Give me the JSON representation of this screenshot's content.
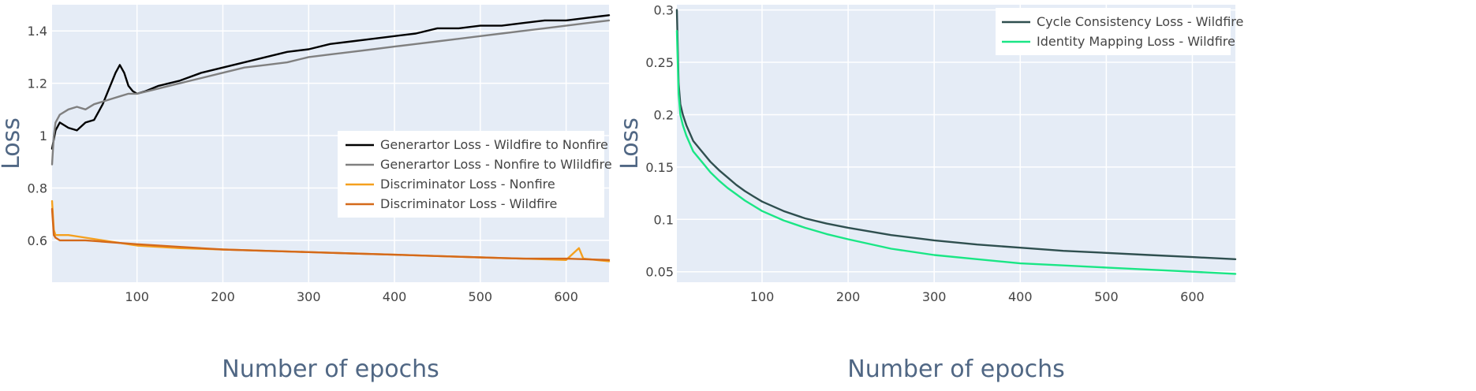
{
  "chart_data": [
    {
      "type": "line",
      "title": "",
      "xlabel": "Number of epochs",
      "ylabel": "Loss",
      "xlim": [
        1,
        650
      ],
      "ylim": [
        0.44,
        1.5
      ],
      "xticks": [
        100,
        200,
        300,
        400,
        500,
        600
      ],
      "yticks": [
        0.6,
        0.8,
        1,
        1.2,
        1.4
      ],
      "ytick_labels": [
        "0.6",
        "0.8",
        "1",
        "1.2",
        "1.4"
      ],
      "grid": true,
      "legend_position": "center-right",
      "series": [
        {
          "name": "Generartor Loss - Wildfire to Nonfire",
          "color": "#000000",
          "x": [
            1,
            5,
            10,
            20,
            30,
            40,
            50,
            60,
            65,
            70,
            75,
            80,
            85,
            90,
            95,
            100,
            110,
            125,
            150,
            175,
            200,
            225,
            250,
            275,
            300,
            325,
            350,
            375,
            400,
            425,
            450,
            475,
            500,
            525,
            550,
            575,
            600,
            625,
            650
          ],
          "y": [
            0.95,
            1.02,
            1.05,
            1.03,
            1.02,
            1.05,
            1.06,
            1.12,
            1.16,
            1.2,
            1.24,
            1.27,
            1.24,
            1.19,
            1.17,
            1.16,
            1.17,
            1.19,
            1.21,
            1.24,
            1.26,
            1.28,
            1.3,
            1.32,
            1.33,
            1.35,
            1.36,
            1.37,
            1.38,
            1.39,
            1.41,
            1.41,
            1.42,
            1.42,
            1.43,
            1.44,
            1.44,
            1.45,
            1.46
          ]
        },
        {
          "name": "Generartor Loss - Nonfire to Wlildfire",
          "color": "#808080",
          "x": [
            1,
            3,
            5,
            10,
            20,
            30,
            40,
            50,
            60,
            70,
            80,
            90,
            100,
            125,
            150,
            175,
            200,
            225,
            250,
            275,
            300,
            325,
            350,
            375,
            400,
            425,
            450,
            475,
            500,
            525,
            550,
            575,
            600,
            625,
            650
          ],
          "y": [
            0.89,
            1.0,
            1.05,
            1.08,
            1.1,
            1.11,
            1.1,
            1.12,
            1.13,
            1.14,
            1.15,
            1.16,
            1.16,
            1.18,
            1.2,
            1.22,
            1.24,
            1.26,
            1.27,
            1.28,
            1.3,
            1.31,
            1.32,
            1.33,
            1.34,
            1.35,
            1.36,
            1.37,
            1.38,
            1.39,
            1.4,
            1.41,
            1.42,
            1.43,
            1.44
          ]
        },
        {
          "name": "Discriminator Loss - Nonfire",
          "color": "#F5A01E",
          "x": [
            1,
            3,
            5,
            10,
            20,
            40,
            60,
            80,
            100,
            150,
            200,
            250,
            300,
            350,
            400,
            450,
            500,
            550,
            600,
            615,
            620,
            650
          ],
          "y": [
            0.75,
            0.64,
            0.62,
            0.62,
            0.62,
            0.61,
            0.6,
            0.59,
            0.58,
            0.57,
            0.565,
            0.56,
            0.555,
            0.55,
            0.545,
            0.54,
            0.535,
            0.53,
            0.525,
            0.57,
            0.53,
            0.52
          ]
        },
        {
          "name": "Discriminator Loss - Wildfire",
          "color": "#D4691A",
          "x": [
            1,
            3,
            5,
            10,
            20,
            40,
            60,
            80,
            100,
            150,
            200,
            250,
            300,
            350,
            400,
            450,
            500,
            550,
            600,
            650
          ],
          "y": [
            0.72,
            0.62,
            0.61,
            0.6,
            0.6,
            0.6,
            0.595,
            0.59,
            0.585,
            0.575,
            0.565,
            0.56,
            0.555,
            0.55,
            0.545,
            0.54,
            0.535,
            0.53,
            0.53,
            0.525
          ]
        }
      ]
    },
    {
      "type": "line",
      "title": "",
      "xlabel": "Number of epochs",
      "ylabel": "Loss",
      "xlim": [
        1,
        650
      ],
      "ylim": [
        0.04,
        0.305
      ],
      "xticks": [
        100,
        200,
        300,
        400,
        500,
        600
      ],
      "yticks": [
        0.05,
        0.1,
        0.15,
        0.2,
        0.25,
        0.3
      ],
      "ytick_labels": [
        "0.05",
        "0.1",
        "0.15",
        "0.2",
        "0.25",
        "0.3"
      ],
      "grid": true,
      "legend_position": "top-right",
      "series": [
        {
          "name": "Cycle Consistency Loss - Wildfire",
          "color": "#2F4F4F",
          "x": [
            1,
            3,
            5,
            8,
            12,
            20,
            30,
            40,
            50,
            60,
            70,
            80,
            90,
            100,
            125,
            150,
            175,
            200,
            250,
            300,
            350,
            400,
            450,
            500,
            550,
            600,
            650
          ],
          "y": [
            0.3,
            0.23,
            0.21,
            0.2,
            0.19,
            0.175,
            0.165,
            0.155,
            0.147,
            0.14,
            0.133,
            0.127,
            0.122,
            0.117,
            0.108,
            0.101,
            0.096,
            0.092,
            0.085,
            0.08,
            0.076,
            0.073,
            0.07,
            0.068,
            0.066,
            0.064,
            0.062
          ]
        },
        {
          "name": "Identity Mapping Loss - Wildfire",
          "color": "#1AE685",
          "x": [
            1,
            3,
            5,
            8,
            12,
            20,
            30,
            40,
            50,
            60,
            70,
            80,
            90,
            100,
            125,
            150,
            175,
            200,
            250,
            300,
            350,
            400,
            450,
            500,
            550,
            600,
            650
          ],
          "y": [
            0.28,
            0.22,
            0.2,
            0.19,
            0.18,
            0.165,
            0.155,
            0.145,
            0.137,
            0.13,
            0.124,
            0.118,
            0.113,
            0.108,
            0.099,
            0.092,
            0.086,
            0.081,
            0.072,
            0.066,
            0.062,
            0.058,
            0.056,
            0.054,
            0.052,
            0.05,
            0.048
          ]
        }
      ]
    }
  ]
}
